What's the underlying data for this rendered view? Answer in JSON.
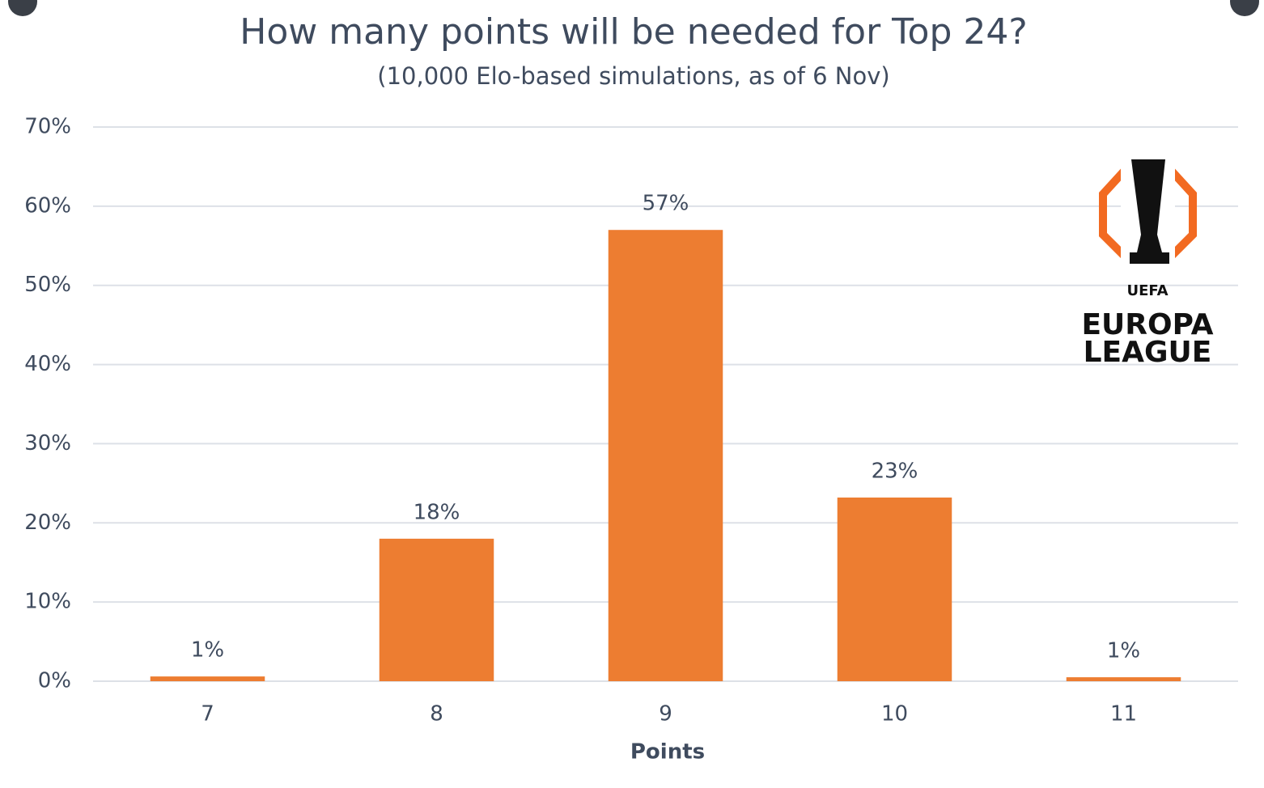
{
  "chart_data": {
    "type": "bar",
    "title": "How many points will be needed for Top 24?",
    "subtitle": "(10,000 Elo-based simulations, as of 6 Nov)",
    "x_label": "Points",
    "categories": [
      "7",
      "8",
      "9",
      "10",
      "11"
    ],
    "values": [
      0.6,
      18,
      57,
      23.2,
      0.5
    ],
    "value_labels": [
      "1%",
      "18%",
      "57%",
      "23%",
      "1%"
    ],
    "color": "#ed7d31",
    "ylim": [
      0,
      70
    ],
    "yticks": [
      {
        "value": 0,
        "label": "0%"
      },
      {
        "value": 10,
        "label": "10%"
      },
      {
        "value": 20,
        "label": "20%"
      },
      {
        "value": 30,
        "label": "30%"
      },
      {
        "value": 40,
        "label": "40%"
      },
      {
        "value": 50,
        "label": "50%"
      },
      {
        "value": 60,
        "label": "60%"
      },
      {
        "value": 70,
        "label": "70%"
      }
    ],
    "grid": true
  },
  "logo_text": [
    "UEFA",
    "EUROPA",
    "LEAGUE"
  ]
}
